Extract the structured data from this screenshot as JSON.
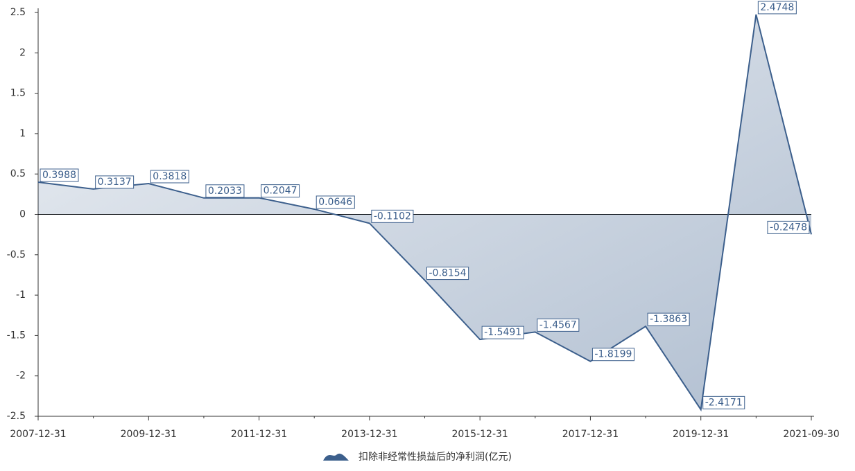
{
  "chart_data": {
    "type": "area",
    "categories": [
      "2007-12-31",
      null,
      "2009-12-31",
      null,
      "2011-12-31",
      null,
      "2013-12-31",
      null,
      "2015-12-31",
      null,
      "2017-12-31",
      null,
      "2019-12-31",
      null,
      "2021-09-30"
    ],
    "series": [
      {
        "name": "扣除非经常性损益后的净利润(亿元)",
        "color": "#3c5f8c",
        "values": [
          0.3988,
          0.3137,
          0.3818,
          0.2033,
          0.2047,
          0.0646,
          -0.1102,
          -0.8154,
          -1.5491,
          -1.4567,
          -1.8199,
          -1.3863,
          -2.4171,
          2.4748,
          -0.2478
        ]
      }
    ],
    "ylim": [
      -2.5,
      2.5
    ],
    "yticks": [
      -2.5,
      -2,
      -1.5,
      -1,
      -0.5,
      0,
      0.5,
      1,
      1.5,
      2,
      2.5
    ],
    "legend": "bottom"
  }
}
